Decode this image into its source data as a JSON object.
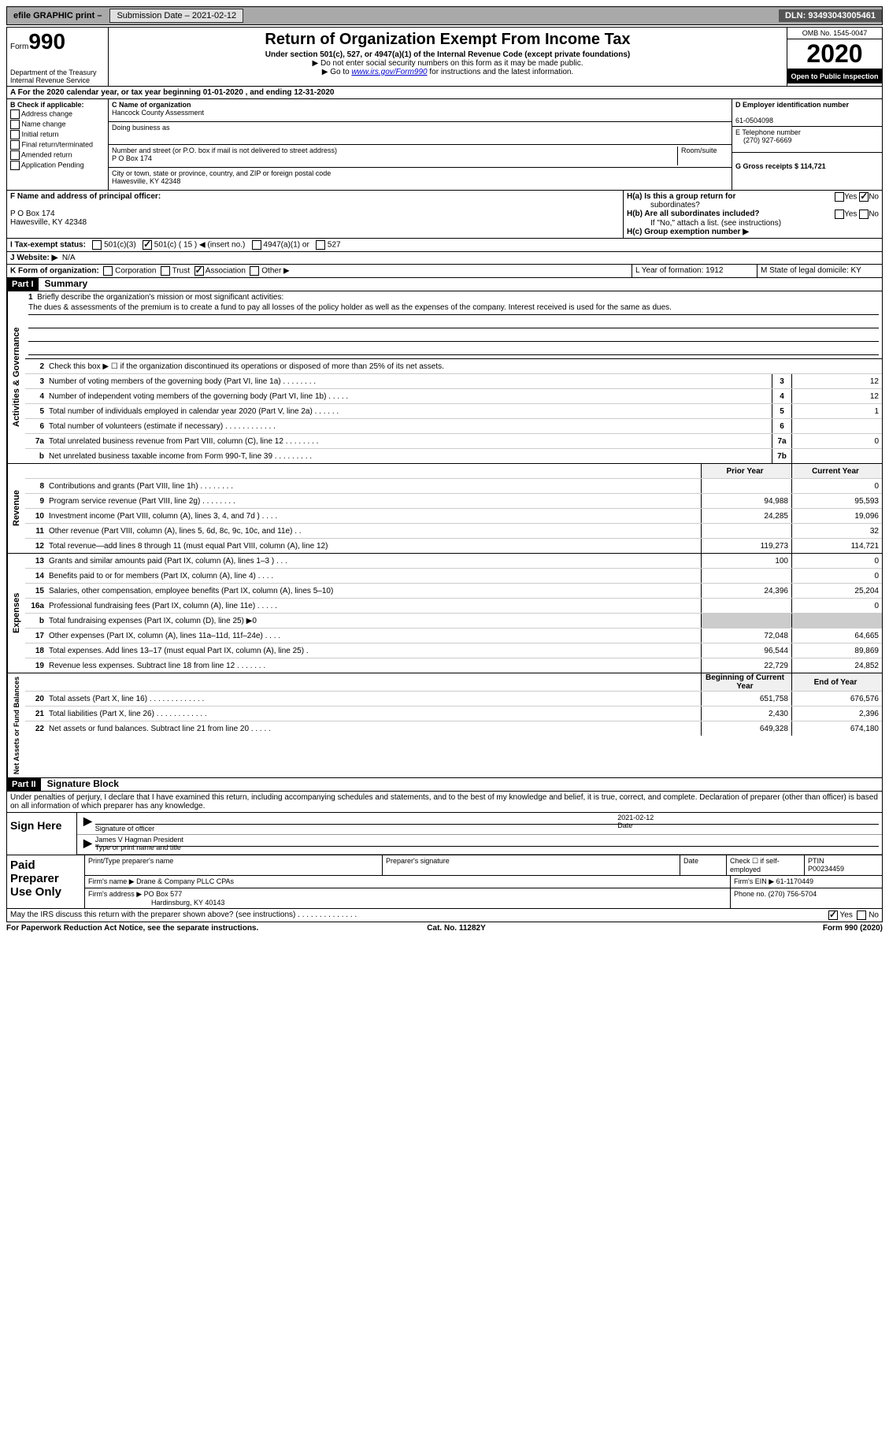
{
  "topbar": {
    "efile": "efile GRAPHIC print –",
    "submission_label": "Submission Date – 2021-02-12",
    "dln": "DLN: 93493043005461"
  },
  "header": {
    "form_label": "Form",
    "form_num": "990",
    "dept": "Department of the Treasury\nInternal Revenue Service",
    "title": "Return of Organization Exempt From Income Tax",
    "sub": "Under section 501(c), 527, or 4947(a)(1) of the Internal Revenue Code (except private foundations)",
    "instr1": "▶ Do not enter social security numbers on this form as it may be made public.",
    "instr2_pre": "▶ Go to ",
    "instr2_link": "www.irs.gov/Form990",
    "instr2_post": " for instructions and the latest information.",
    "omb": "OMB No. 1545-0047",
    "year": "2020",
    "inspect": "Open to Public Inspection"
  },
  "lineA": "A For the 2020 calendar year, or tax year beginning 01-01-2020    , and ending 12-31-2020",
  "sectionB": {
    "label": "B Check if applicable:",
    "opts": [
      "Address change",
      "Name change",
      "Initial return",
      "Final return/terminated",
      "Amended return",
      "Application Pending"
    ]
  },
  "sectionC": {
    "name_label": "C Name of organization",
    "name": "Hancock County Assessment",
    "dba_label": "Doing business as",
    "addr_label": "Number and street (or P.O. box if mail is not delivered to street address)",
    "room_label": "Room/suite",
    "addr": "P O Box 174",
    "city_label": "City or town, state or province, country, and ZIP or foreign postal code",
    "city": "Hawesville, KY  42348"
  },
  "sectionD": {
    "ein_label": "D Employer identification number",
    "ein": "61-0504098",
    "phone_label": "E Telephone number",
    "phone": "(270) 927-6669",
    "gross_label": "G Gross receipts $ 114,721"
  },
  "sectionF": {
    "label": "F Name and address of principal officer:",
    "addr1": "P O Box 174",
    "addr2": "Hawesville, KY  42348"
  },
  "sectionH": {
    "a_label": "H(a)  Is this a group return for",
    "a_sub": "subordinates?",
    "b_label": "H(b)  Are all subordinates included?",
    "b_note": "If \"No,\" attach a list. (see instructions)",
    "c_label": "H(c)  Group exemption number ▶",
    "yes": "Yes",
    "no": "No"
  },
  "lineI": {
    "label": "I    Tax-exempt status:",
    "opts": [
      "501(c)(3)",
      "501(c) ( 15 ) ◀ (insert no.)",
      "4947(a)(1) or",
      "527"
    ]
  },
  "lineJ": {
    "label": "J    Website: ▶",
    "val": "N/A"
  },
  "lineK": {
    "label": "K Form of organization:",
    "opts": [
      "Corporation",
      "Trust",
      "Association",
      "Other ▶"
    ]
  },
  "lineL": "L Year of formation: 1912",
  "lineM": "M State of legal domicile: KY",
  "parts": {
    "p1": "Part I",
    "p1_title": "Summary",
    "p2": "Part II",
    "p2_title": "Signature Block"
  },
  "summary": {
    "q1": "Briefly describe the organization's mission or most significant activities:",
    "mission": "The dues & assessments of the premium is to create a fund to pay all losses of the policy holder as well as the expenses of the company. Interest received is used for the same as dues.",
    "q2": "Check this box ▶ ☐  if the organization discontinued its operations or disposed of more than 25% of its net assets.",
    "headers": {
      "prior": "Prior Year",
      "current": "Current Year",
      "begin": "Beginning of Current Year",
      "end": "End of Year"
    },
    "governance": [
      {
        "n": "3",
        "d": "Number of voting members of the governing body (Part VI, line 1a)   .    .    .    .    .    .    .    .",
        "b": "3",
        "v": "12"
      },
      {
        "n": "4",
        "d": "Number of independent voting members of the governing body (Part VI, line 1b)   .    .    .    .    .",
        "b": "4",
        "v": "12"
      },
      {
        "n": "5",
        "d": "Total number of individuals employed in calendar year 2020 (Part V, line 2a)   .    .    .    .    .    .",
        "b": "5",
        "v": "1"
      },
      {
        "n": "6",
        "d": "Total number of volunteers (estimate if necessary)   .    .    .    .    .    .    .    .    .    .    .    .",
        "b": "6",
        "v": ""
      },
      {
        "n": "7a",
        "d": "Total unrelated business revenue from Part VIII, column (C), line 12   .    .    .    .    .    .    .    .",
        "b": "7a",
        "v": "0"
      },
      {
        "n": "b",
        "d": "Net unrelated business taxable income from Form 990-T, line 39   .    .    .    .    .    .    .    .    .",
        "b": "7b",
        "v": ""
      }
    ],
    "revenue": [
      {
        "n": "8",
        "d": "Contributions and grants (Part VIII, line 1h)   .    .    .    .    .    .    .    .",
        "p": "",
        "c": "0"
      },
      {
        "n": "9",
        "d": "Program service revenue (Part VIII, line 2g)   .    .    .    .    .    .    .    .",
        "p": "94,988",
        "c": "95,593"
      },
      {
        "n": "10",
        "d": "Investment income (Part VIII, column (A), lines 3, 4, and 7d )   .    .    .    .",
        "p": "24,285",
        "c": "19,096"
      },
      {
        "n": "11",
        "d": "Other revenue (Part VIII, column (A), lines 5, 6d, 8c, 9c, 10c, and 11e)   .    .",
        "p": "",
        "c": "32"
      },
      {
        "n": "12",
        "d": "Total revenue—add lines 8 through 11 (must equal Part VIII, column (A), line 12)",
        "p": "119,273",
        "c": "114,721"
      }
    ],
    "expenses": [
      {
        "n": "13",
        "d": "Grants and similar amounts paid (Part IX, column (A), lines 1–3 )   .    .    .",
        "p": "100",
        "c": "0"
      },
      {
        "n": "14",
        "d": "Benefits paid to or for members (Part IX, column (A), line 4)   .    .    .    .",
        "p": "",
        "c": "0"
      },
      {
        "n": "15",
        "d": "Salaries, other compensation, employee benefits (Part IX, column (A), lines 5–10)",
        "p": "24,396",
        "c": "25,204"
      },
      {
        "n": "16a",
        "d": "Professional fundraising fees (Part IX, column (A), line 11e)   .    .    .    .    .",
        "p": "",
        "c": "0"
      },
      {
        "n": "b",
        "d": "Total fundraising expenses (Part IX, column (D), line 25) ▶0",
        "p": "shade",
        "c": "shade"
      },
      {
        "n": "17",
        "d": "Other expenses (Part IX, column (A), lines 11a–11d, 11f–24e)   .    .    .    .",
        "p": "72,048",
        "c": "64,665"
      },
      {
        "n": "18",
        "d": "Total expenses. Add lines 13–17 (must equal Part IX, column (A), line 25)   .",
        "p": "96,544",
        "c": "89,869"
      },
      {
        "n": "19",
        "d": "Revenue less expenses. Subtract line 18 from line 12   .    .    .    .    .    .    .",
        "p": "22,729",
        "c": "24,852"
      }
    ],
    "netassets": [
      {
        "n": "20",
        "d": "Total assets (Part X, line 16)   .    .    .    .    .    .    .    .    .    .    .    .    .",
        "p": "651,758",
        "c": "676,576"
      },
      {
        "n": "21",
        "d": "Total liabilities (Part X, line 26)   .    .    .    .    .    .    .    .    .    .    .    .",
        "p": "2,430",
        "c": "2,396"
      },
      {
        "n": "22",
        "d": "Net assets or fund balances. Subtract line 21 from line 20   .    .    .    .    .",
        "p": "649,328",
        "c": "674,180"
      }
    ]
  },
  "sig": {
    "penalty": "Under penalties of perjury, I declare that I have examined this return, including accompanying schedules and statements, and to the best of my knowledge and belief, it is true, correct, and complete. Declaration of preparer (other than officer) is based on all information of which preparer has any knowledge.",
    "sign_here": "Sign Here",
    "sig_of_officer": "Signature of officer",
    "date": "2021-02-12",
    "date_label": "Date",
    "officer_name": "James V Hagman  President",
    "officer_label": "Type or print name and title",
    "paid": "Paid Preparer Use Only",
    "prep_name_label": "Print/Type preparer's name",
    "prep_sig_label": "Preparer's signature",
    "prep_date_label": "Date",
    "check_label": "Check ☐ if self-employed",
    "ptin_label": "PTIN",
    "ptin": "P00234459",
    "firm_name_label": "Firm's name    ▶",
    "firm_name": "Drane & Company PLLC CPAs",
    "firm_ein_label": "Firm's EIN ▶",
    "firm_ein": "61-1170449",
    "firm_addr_label": "Firm's address ▶",
    "firm_addr": "PO Box 577",
    "firm_city": "Hardinsburg, KY  40143",
    "phone_label": "Phone no.",
    "phone": "(270) 756-5704",
    "discuss": "May the IRS discuss this return with the preparer shown above? (see instructions)   .    .    .    .    .    .    .    .    .    .    .    .    .    .",
    "discuss_yes": "Yes",
    "discuss_no": "No"
  },
  "footer": {
    "pra": "For Paperwork Reduction Act Notice, see the separate instructions.",
    "cat": "Cat. No. 11282Y",
    "form": "Form 990 (2020)"
  }
}
